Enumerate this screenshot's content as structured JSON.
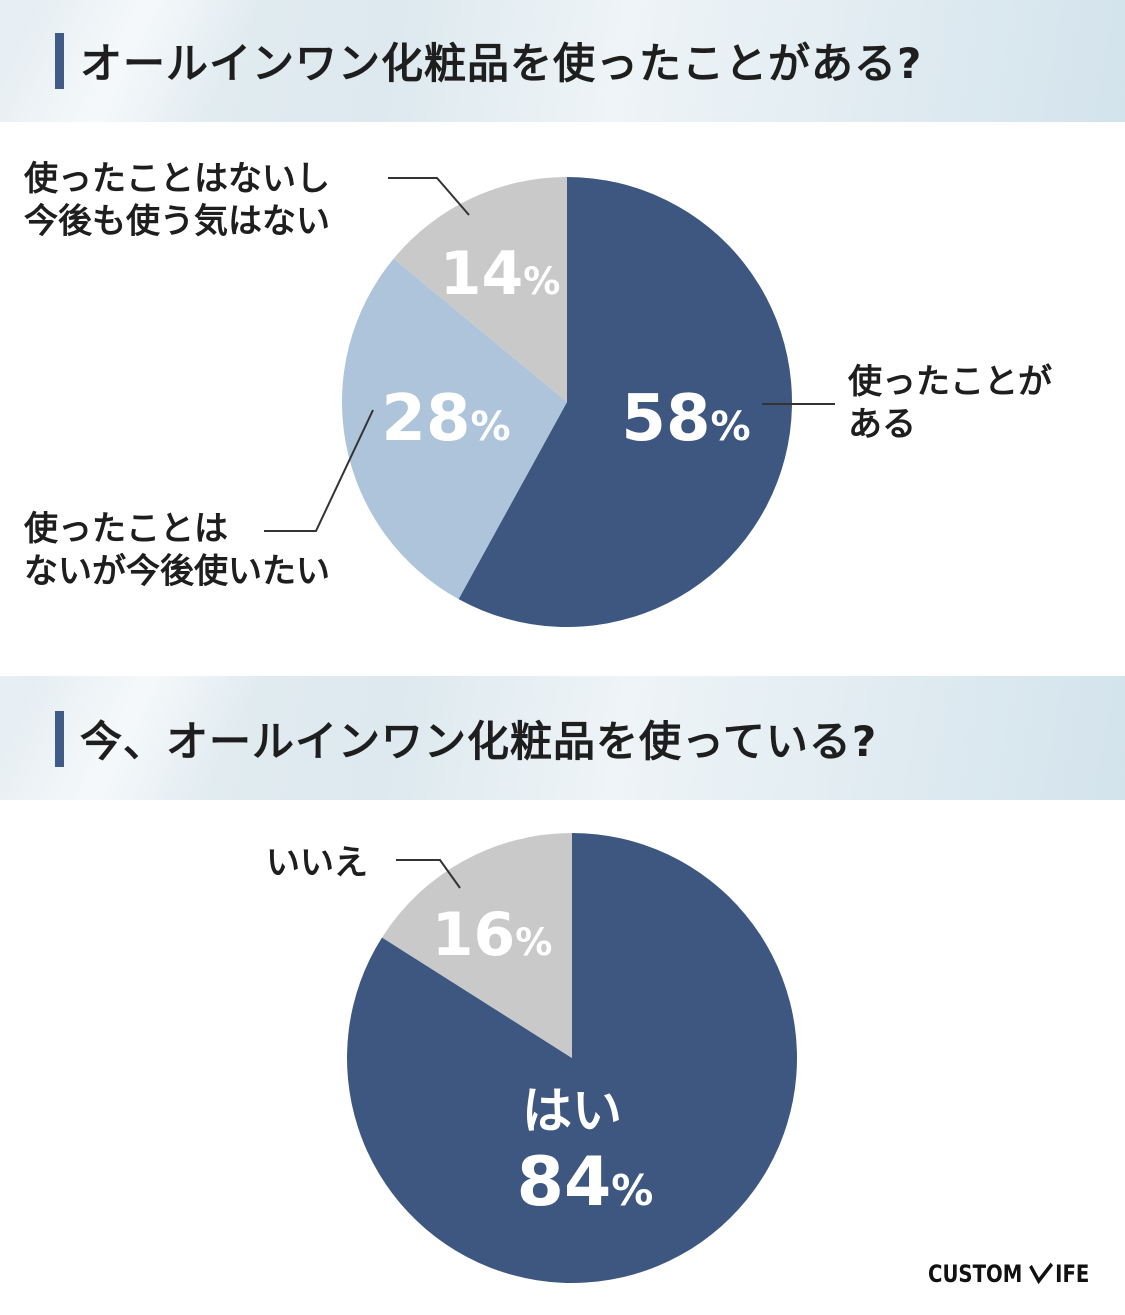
{
  "chart_data": [
    {
      "type": "pie",
      "title": "オールインワン化粧品を使ったことがある?",
      "slices": [
        {
          "label": "使ったことがある",
          "label_lines": [
            "使ったことが",
            "ある"
          ],
          "value": 58,
          "value_text": "58",
          "color": "#3d5781",
          "text_color": "#ffffff"
        },
        {
          "label": "使ったことはないが今後使いたい",
          "label_lines": [
            "使ったことは",
            "ないが今後使いたい"
          ],
          "value": 28,
          "value_text": "28",
          "color": "#adc4da",
          "text_color": "#ffffff"
        },
        {
          "label": "使ったことはないし今後も使う気はない",
          "label_lines": [
            "使ったことはないし",
            "今後も使う気はない"
          ],
          "value": 14,
          "value_text": "14",
          "color": "#c9c9c9",
          "text_color": "#ffffff"
        }
      ],
      "unit": "%"
    },
    {
      "type": "pie",
      "title": "今、オールインワン化粧品を使っている?",
      "slices": [
        {
          "label": "はい",
          "value": 84,
          "value_text": "84",
          "color": "#3d5781",
          "text_color": "#ffffff"
        },
        {
          "label": "いいえ",
          "value": 16,
          "value_text": "16",
          "color": "#c9c9c9",
          "text_color": "#ffffff"
        }
      ],
      "unit": "%"
    }
  ],
  "brand": {
    "left": "CUSTOM",
    "right": "IFE"
  },
  "colors": {
    "title_accent": "#3f5b86",
    "leader_line": "#333333"
  }
}
